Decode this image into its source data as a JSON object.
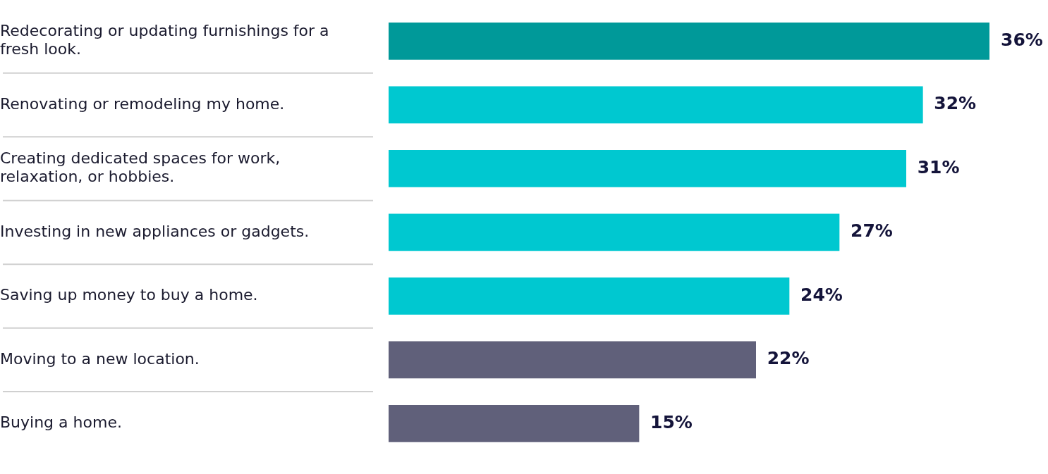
{
  "chart_data": {
    "type": "bar",
    "orientation": "horizontal",
    "categories": [
      "Redecorating or updating furnishings for a fresh look.",
      "Renovating or remodeling my home.",
      "Creating dedicated spaces for work, relaxation, or hobbies.",
      "Investing in new appliances or gadgets.",
      "Saving up money to buy a home.",
      "Moving to a new location.",
      "Buying a home."
    ],
    "values": [
      36,
      32,
      31,
      27,
      24,
      22,
      15
    ],
    "colors": [
      "#009999",
      "#00c8d0",
      "#00c8d0",
      "#00c8d0",
      "#00c8d0",
      "#60607a",
      "#60607a"
    ],
    "value_labels": [
      "36%",
      "32%",
      "31%",
      "27%",
      "24%",
      "22%",
      "15%"
    ]
  }
}
